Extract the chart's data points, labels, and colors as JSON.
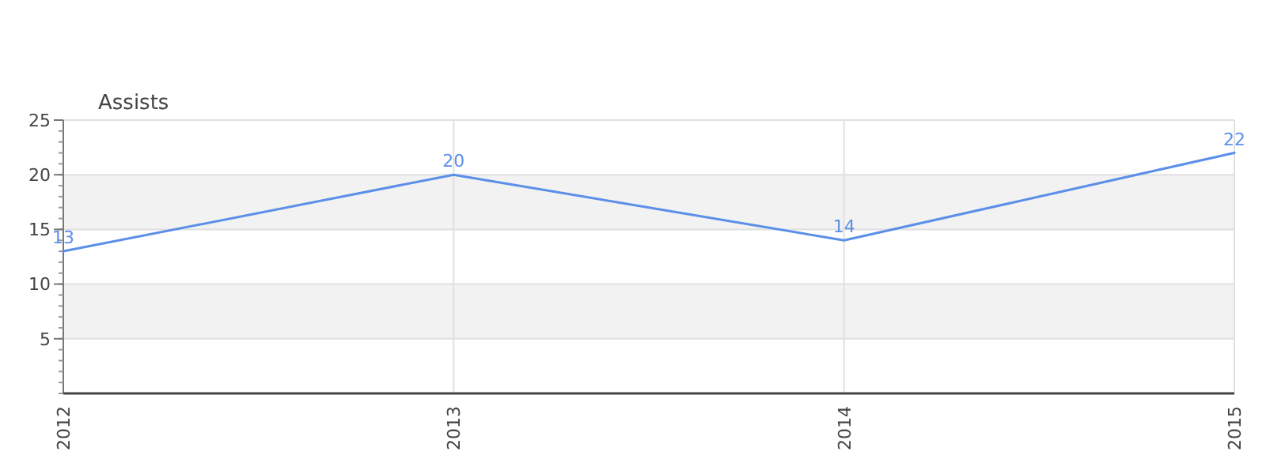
{
  "chart_data": {
    "type": "line",
    "ylabel": "Assists",
    "categories": [
      "2012",
      "2013",
      "2014",
      "2015"
    ],
    "series": [
      {
        "color": "#5b8fe8",
        "values": [
          13,
          20,
          14,
          22
        ]
      }
    ],
    "ylim": [
      0,
      25
    ],
    "yticks": [
      5,
      10,
      15,
      20,
      25
    ],
    "grid": true,
    "data_labels": true
  }
}
